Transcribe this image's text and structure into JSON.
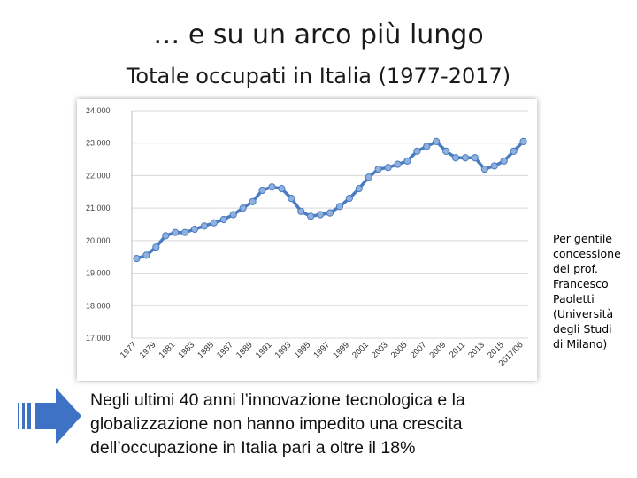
{
  "slide": {
    "title": "… e su un arco più lungo",
    "subtitle": "Totale occupati in Italia (1977-2017)",
    "credit_lines": [
      "Per gentile",
      "concessione",
      "del prof.",
      "Francesco",
      "Paoletti",
      "(Università",
      "degli Studi",
      "di Milano)"
    ],
    "caption_lines": [
      "Negli ultimi 40 anni l’innovazione tecnologica e la",
      "globalizzazione non hanno impedito una crescita",
      "dell’occupazione in Italia pari a oltre il 18%"
    ],
    "arrow_icon": "right-arrow-icon"
  },
  "chart_data": {
    "type": "line",
    "title": "",
    "xlabel": "",
    "ylabel": "",
    "ylim": [
      17000,
      24000
    ],
    "yticks": [
      17000,
      18000,
      19000,
      20000,
      21000,
      22000,
      23000,
      24000
    ],
    "ytick_labels": [
      "17.000",
      "18.000",
      "19.000",
      "20.000",
      "21.000",
      "22.000",
      "23.000",
      "24.000"
    ],
    "xtick_labels": [
      "1977",
      "1979",
      "1981",
      "1983",
      "1985",
      "1987",
      "1989",
      "1991",
      "1993",
      "1995",
      "1997",
      "1999",
      "2001",
      "2003",
      "2005",
      "2007",
      "2009",
      "2011",
      "2013",
      "2015",
      "2017/06"
    ],
    "grid": true,
    "line_color": "#4a7cc0",
    "marker_color": "#8fb1e0",
    "grid_color": "#d9d9d9",
    "series": [
      {
        "x": [
          "1977",
          "1978",
          "1979",
          "1980",
          "1981",
          "1982",
          "1983",
          "1984",
          "1985",
          "1986",
          "1987",
          "1988",
          "1989",
          "1990",
          "1991",
          "1992",
          "1993",
          "1994",
          "1995",
          "1996",
          "1997",
          "1998",
          "1999",
          "2000",
          "2001",
          "2002",
          "2003",
          "2004",
          "2005",
          "2006",
          "2007",
          "2008",
          "2009",
          "2010",
          "2011",
          "2012",
          "2013",
          "2014",
          "2015",
          "2016",
          "2017/06"
        ],
        "values": [
          19450,
          19550,
          19800,
          20150,
          20250,
          20250,
          20350,
          20450,
          20550,
          20650,
          20800,
          21000,
          21200,
          21550,
          21650,
          21600,
          21300,
          20900,
          20750,
          20800,
          20850,
          21050,
          21300,
          21600,
          21950,
          22200,
          22250,
          22350,
          22450,
          22750,
          22900,
          23050,
          22750,
          22550,
          22550,
          22550,
          22200,
          22300,
          22450,
          22750,
          23050
        ]
      }
    ]
  }
}
